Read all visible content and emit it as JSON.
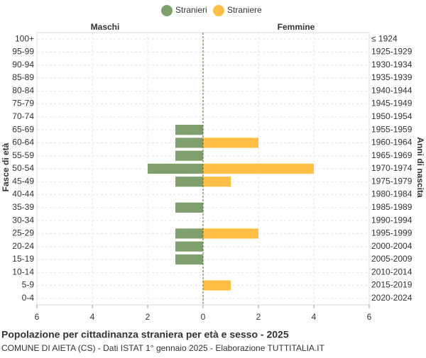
{
  "chart_data": {
    "type": "pyramid",
    "title": "Popolazione per cittadinanza straniera per età e sesso - 2025",
    "subtitle": "COMUNE DI AIETA (CS) - Dati ISTAT 1° gennaio 2025 - Elaborazione TUTTITALIA.IT",
    "y_label": "Fasce di età",
    "y2_label": "Anni di nascita",
    "left_label": "Maschi",
    "right_label": "Femmine",
    "categories": [
      "100+",
      "95-99",
      "90-94",
      "85-89",
      "80-84",
      "75-79",
      "70-74",
      "65-69",
      "60-64",
      "55-59",
      "50-54",
      "45-49",
      "40-44",
      "35-39",
      "30-34",
      "25-29",
      "20-24",
      "15-19",
      "10-14",
      "5-9",
      "0-4"
    ],
    "birth_years": [
      "≤ 1924",
      "1925-1929",
      "1930-1934",
      "1935-1939",
      "1940-1944",
      "1945-1949",
      "1950-1954",
      "1955-1959",
      "1960-1964",
      "1965-1969",
      "1970-1974",
      "1975-1979",
      "1980-1984",
      "1985-1989",
      "1990-1994",
      "1995-1999",
      "2000-2004",
      "2005-2009",
      "2010-2014",
      "2015-2019",
      "2020-2024"
    ],
    "series": [
      {
        "name": "Stranieri",
        "color": "#7f9f6d",
        "values": [
          0,
          0,
          0,
          0,
          0,
          0,
          0,
          1,
          1,
          1,
          2,
          1,
          0,
          1,
          0,
          1,
          1,
          1,
          0,
          0,
          0
        ]
      },
      {
        "name": "Straniere",
        "color": "#ffbf47",
        "values": [
          0,
          0,
          0,
          0,
          0,
          0,
          0,
          0,
          2,
          0,
          4,
          1,
          0,
          0,
          0,
          2,
          0,
          0,
          0,
          1,
          0
        ]
      }
    ],
    "xlim": [
      -6,
      6
    ],
    "xticks": [
      {
        "value": -6,
        "label": "6"
      },
      {
        "value": -4,
        "label": "4"
      },
      {
        "value": -2,
        "label": "2"
      },
      0,
      2,
      4,
      6
    ],
    "grid": true
  }
}
